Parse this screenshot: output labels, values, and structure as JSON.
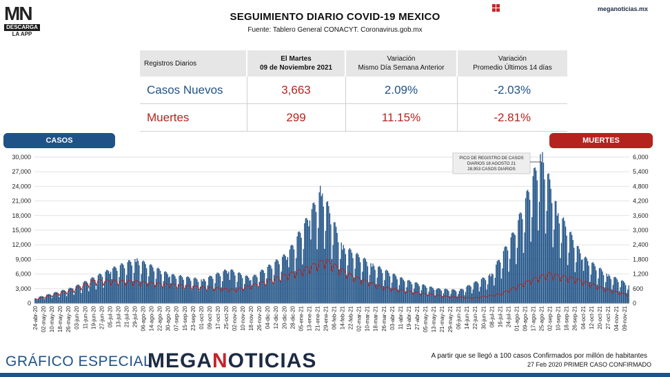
{
  "header": {
    "logo_text_1": "MN",
    "logo_text_2": "DESCARGA",
    "logo_text_3": "LA APP",
    "title": "SEGUIMIENTO DIARIO COVID-19 MEXICO",
    "source": "Fuente: Tablero General CONACYT. Coronavirus.gob.mx",
    "site": "meganoticias.mx"
  },
  "stats_table": {
    "col1_header": "Registros Diarios",
    "col2_header_1": "El Martes",
    "col2_header_2": "09 de Noviembre 2021",
    "col3_header_1": "Variación",
    "col3_header_2": "Mismo Día Semana Anterior",
    "col4_header_1": "Variación",
    "col4_header_2": "Promedio Últimos 14 días",
    "rows": [
      {
        "label": "Casos Nuevos",
        "value": "3,663",
        "var_week": "2.09%",
        "var_14d": "-2.03%"
      },
      {
        "label": "Muertes",
        "value": "299",
        "var_week": "11.15%",
        "var_14d": "-2.81%"
      }
    ]
  },
  "legend": {
    "casos_label": "CASOS",
    "muertes_label": "MUERTES"
  },
  "annotation": {
    "line1": "PICO DE REGISTRO DE CASOS",
    "line2": "DIARIOS 18 AGOSTO 21",
    "line3": "28,953 CASOS DIARIOS"
  },
  "footer": {
    "left": "GRÁFICO ESPECIAL",
    "brand_1": "MEGA",
    "brand_2": "N",
    "brand_3": "OTICIAS",
    "note1": "A partir que se llegó a 100 casos Confirmados por millón de habitantes",
    "note2": "27 Feb 2020 PRIMER CASO CONFIRMADO"
  },
  "colors": {
    "casos": "#1f5286",
    "muertes": "#b5231f",
    "table_header_bg": "#e6e6e6"
  },
  "chart_data": {
    "type": "bar",
    "x_start": "2020-04-24",
    "x_end": "2021-11-09",
    "x_tick_labels": [
      "24-abr-20",
      "02-may-20",
      "10-may-20",
      "18-may-20",
      "26-may-20",
      "03-jun-20",
      "11-jun-20",
      "19-jun-20",
      "27-jun-20",
      "05-jul-20",
      "13-jul-20",
      "21-jul-20",
      "29-jul-20",
      "06-ago-20",
      "14-ago-20",
      "22-ago-20",
      "30-ago-20",
      "07-sep-20",
      "15-sep-20",
      "23-sep-20",
      "01-oct-20",
      "09-oct-20",
      "17-oct-20",
      "25-oct-20",
      "02-nov-20",
      "10-nov-20",
      "18-nov-20",
      "26-nov-20",
      "04-dic-20",
      "12-dic-20",
      "20-dic-20",
      "28-dic-20",
      "05-ene-21",
      "13-ene-21",
      "21-ene-21",
      "29-ene-21",
      "06-feb-21",
      "14-feb-21",
      "22-feb-21",
      "02-mar-21",
      "10-mar-21",
      "18-mar-21",
      "26-mar-21",
      "03-abr-21",
      "11-abr-21",
      "19-abr-21",
      "27-abr-21",
      "05-may-21",
      "13-may-21",
      "21-may-21",
      "29-may-21",
      "06-jun-21",
      "14-jun-21",
      "22-jun-21",
      "30-jun-21",
      "08-jul-21",
      "16-jul-21",
      "24-jul-21",
      "01-ago-21",
      "09-ago-21",
      "17-ago-21",
      "25-ago-21",
      "02-sep-21",
      "10-sep-21",
      "18-sep-21",
      "26-sep-21",
      "04-oct-21",
      "12-oct-21",
      "20-oct-21",
      "27-oct-21",
      "04-nov-21",
      "09-nov-21"
    ],
    "y_left_label": "CASOS",
    "y_left_ticks": [
      0,
      3000,
      6000,
      9000,
      12000,
      15000,
      18000,
      21000,
      24000,
      27000,
      30000
    ],
    "y_left_tick_labels": [
      "0",
      "3,000",
      "6,000",
      "9,000",
      "12,000",
      "15,000",
      "18,000",
      "21,000",
      "24,000",
      "27,000",
      "30,000"
    ],
    "y_left_lim": [
      0,
      30000
    ],
    "y_right_label": "MUERTES",
    "y_right_ticks": [
      0,
      600,
      1200,
      1800,
      2400,
      3000,
      3600,
      4200,
      4800,
      5400,
      6000
    ],
    "y_right_tick_labels": [
      "0",
      "600",
      "1,200",
      "1,800",
      "2,400",
      "3,000",
      "3,600",
      "4,200",
      "4,800",
      "5,400",
      "6,000"
    ],
    "y_right_lim": [
      0,
      6000
    ],
    "series": [
      {
        "name": "CASOS",
        "key_dates": [
          "2020-04-24",
          "2020-05-30",
          "2020-07-05",
          "2020-07-29",
          "2020-08-30",
          "2020-09-30",
          "2020-10-25",
          "2020-11-15",
          "2020-12-20",
          "2021-01-10",
          "2021-01-21",
          "2021-02-10",
          "2021-03-10",
          "2021-04-10",
          "2021-05-10",
          "2021-06-01",
          "2021-07-01",
          "2021-07-24",
          "2021-08-18",
          "2021-09-02",
          "2021-09-26",
          "2021-10-20",
          "2021-11-09"
        ],
        "key_values": [
          1000,
          3000,
          6500,
          8500,
          5500,
          4500,
          6500,
          4800,
          9500,
          17000,
          22000,
          11000,
          7500,
          4500,
          2800,
          2500,
          5500,
          14000,
          28953,
          18000,
          9000,
          5500,
          3663
        ]
      },
      {
        "name": "MUERTES",
        "key_dates": [
          "2020-04-24",
          "2020-05-30",
          "2020-06-20",
          "2020-07-29",
          "2020-09-15",
          "2020-10-31",
          "2020-11-20",
          "2020-12-31",
          "2021-01-25",
          "2021-02-20",
          "2021-03-20",
          "2021-04-20",
          "2021-05-20",
          "2021-06-15",
          "2021-07-10",
          "2021-08-10",
          "2021-08-25",
          "2021-09-20",
          "2021-10-20",
          "2021-11-09"
        ],
        "key_values": [
          150,
          500,
          850,
          800,
          650,
          500,
          700,
          1200,
          1600,
          1000,
          600,
          400,
          250,
          200,
          350,
          900,
          1100,
          900,
          500,
          299
        ]
      }
    ]
  }
}
